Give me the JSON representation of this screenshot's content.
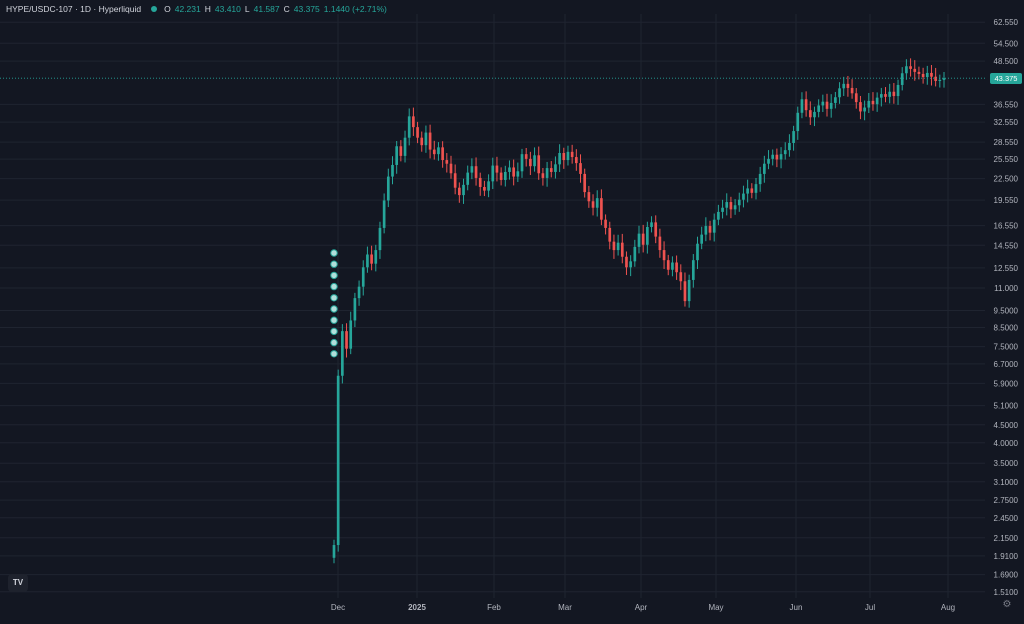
{
  "legend": {
    "symbol": "HYPE/USDC-107 · 1D · Hyperliquid",
    "o_label": "O",
    "o_value": "42.231",
    "h_label": "H",
    "h_value": "43.410",
    "l_label": "L",
    "l_value": "41.587",
    "c_label": "C",
    "c_value": "43.375",
    "change": "1.1440 (+2.71%)"
  },
  "last_price_tag": "43.375",
  "logo_text": "TV",
  "settings_icon": "gear-icon",
  "colors": {
    "background": "#131722",
    "up": "#26a69a",
    "down": "#ef5350",
    "grid": "#1f2430",
    "text": "#b2b5be"
  },
  "chart_data": {
    "type": "candlestick",
    "x_ticks": [
      "Dec",
      "2025",
      "Feb",
      "Mar",
      "Apr",
      "May",
      "Jun",
      "Jul",
      "Aug"
    ],
    "y_scale": "log",
    "y_ticks": [
      "62.550",
      "54.500",
      "48.500",
      "43.375",
      "36.550",
      "32.550",
      "28.550",
      "25.550",
      "22.500",
      "19.550",
      "16.550",
      "14.550",
      "12.550",
      "11.000",
      "9.5000",
      "8.5000",
      "7.5000",
      "6.7000",
      "5.9000",
      "5.1000",
      "4.5000",
      "4.0000",
      "3.5000",
      "3.1000",
      "2.7500",
      "2.4500",
      "2.1500",
      "1.9100",
      "1.6900",
      "1.5100"
    ],
    "ylim": [
      1.45,
      66
    ],
    "last_close": 43.375,
    "grid": true,
    "closes": [
      2.05,
      6.2,
      8.3,
      7.4,
      8.9,
      10.3,
      11.1,
      12.6,
      13.7,
      12.9,
      14.1,
      16.3,
      19.5,
      22.8,
      24.6,
      27.8,
      26.1,
      29.4,
      33.8,
      31.5,
      29.4,
      28.0,
      30.4,
      27.2,
      26.4,
      27.6,
      25.4,
      24.8,
      23.3,
      21.2,
      20.2,
      21.6,
      23.4,
      24.4,
      22.6,
      21.3,
      20.8,
      22.1,
      24.5,
      23.4,
      22.3,
      23.5,
      24.2,
      22.8,
      23.6,
      26.4,
      25.6,
      24.4,
      26.2,
      23.3,
      22.6,
      24.1,
      23.5,
      24.7,
      26.6,
      25.4,
      26.8,
      25.9,
      24.9,
      23.2,
      20.6,
      19.4,
      18.6,
      19.8,
      17.2,
      16.3,
      14.9,
      14.1,
      14.8,
      13.5,
      12.6,
      13.1,
      14.4,
      15.7,
      14.6,
      16.4,
      16.9,
      15.4,
      14.1,
      13.2,
      12.4,
      13.0,
      12.2,
      11.5,
      10.1,
      11.6,
      13.2,
      14.7,
      15.6,
      16.5,
      15.8,
      17.2,
      18.1,
      18.6,
      19.3,
      18.4,
      18.9,
      19.6,
      20.4,
      21.1,
      20.5,
      21.7,
      23.2,
      24.8,
      25.6,
      26.3,
      25.5,
      26.4,
      27.1,
      28.4,
      30.7,
      34.6,
      37.8,
      35.2,
      33.6,
      34.8,
      36.3,
      37.2,
      35.5,
      36.9,
      38.3,
      40.6,
      41.8,
      40.7,
      39.3,
      37.1,
      34.9,
      35.8,
      37.4,
      36.6,
      38.2,
      39.1,
      38.4,
      39.7,
      38.6,
      41.5,
      44.8,
      46.9,
      46.1,
      45.2,
      44.6,
      43.7,
      44.9,
      43.8,
      42.6,
      42.9,
      43.375
    ]
  }
}
